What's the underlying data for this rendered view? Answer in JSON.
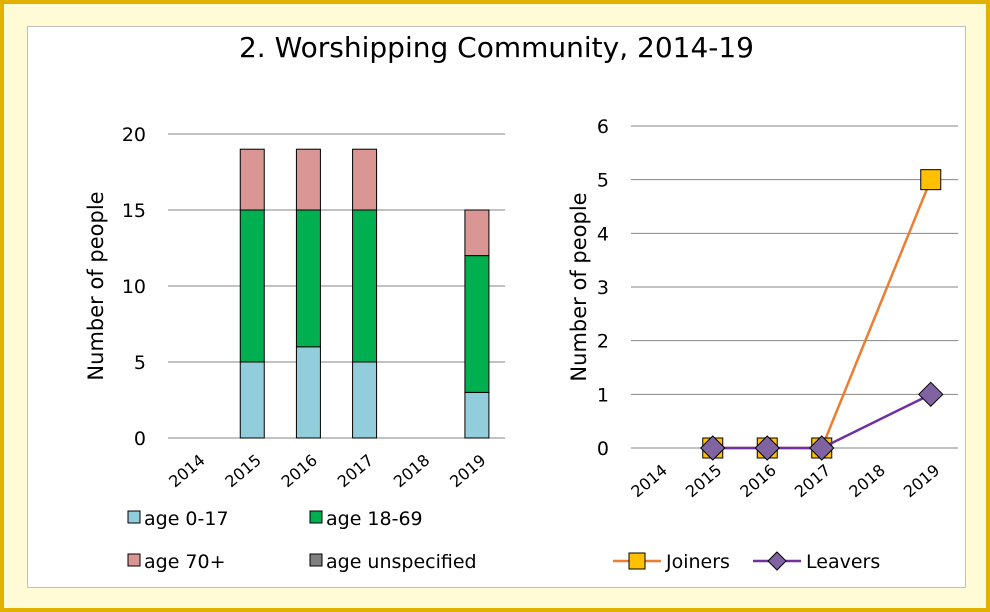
{
  "title": "2. Worshipping Community, 2014-19",
  "colors": {
    "age_0_17": "#92cddc",
    "age_18_69": "#00b050",
    "age_70_plus": "#da9694",
    "age_unspecified": "#7f7f7f",
    "joiners_line": "#ed7d31",
    "joiners_marker": "#ffc000",
    "leavers_line": "#7030a0",
    "leavers_marker": "#8064a2",
    "frame_border": "#e2b100",
    "frame_bg": "#fffbd6"
  },
  "chart_data": [
    {
      "type": "bar",
      "stacked": true,
      "categories": [
        "2014",
        "2015",
        "2016",
        "2017",
        "2018",
        "2019"
      ],
      "ylabel": "Number of people",
      "ylim": [
        0,
        20
      ],
      "yticks": [
        0,
        5,
        10,
        15,
        20
      ],
      "grid": true,
      "legend_position": "bottom",
      "series": [
        {
          "name": "age 0-17",
          "color_key": "age_0_17",
          "values": [
            0,
            5,
            6,
            5,
            0,
            3
          ]
        },
        {
          "name": "age 18-69",
          "color_key": "age_18_69",
          "values": [
            0,
            10,
            9,
            10,
            0,
            9
          ]
        },
        {
          "name": "age 70+",
          "color_key": "age_70_plus",
          "values": [
            0,
            4,
            4,
            4,
            0,
            3
          ]
        },
        {
          "name": "age unspecified",
          "color_key": "age_unspecified",
          "values": [
            0,
            0,
            0,
            0,
            0,
            0
          ]
        }
      ]
    },
    {
      "type": "line",
      "categories": [
        "2014",
        "2015",
        "2016",
        "2017",
        "2018",
        "2019"
      ],
      "ylabel": "Number of people",
      "ylim": [
        0,
        6
      ],
      "yticks": [
        0,
        1,
        2,
        3,
        4,
        5,
        6
      ],
      "grid": true,
      "legend_position": "bottom",
      "series": [
        {
          "name": "Joiners",
          "marker": "square",
          "color_key": "joiners_line",
          "marker_key": "joiners_marker",
          "values": [
            null,
            0,
            0,
            0,
            null,
            5
          ]
        },
        {
          "name": "Leavers",
          "marker": "diamond",
          "color_key": "leavers_line",
          "marker_key": "leavers_marker",
          "values": [
            null,
            0,
            0,
            0,
            null,
            1
          ]
        }
      ]
    }
  ]
}
